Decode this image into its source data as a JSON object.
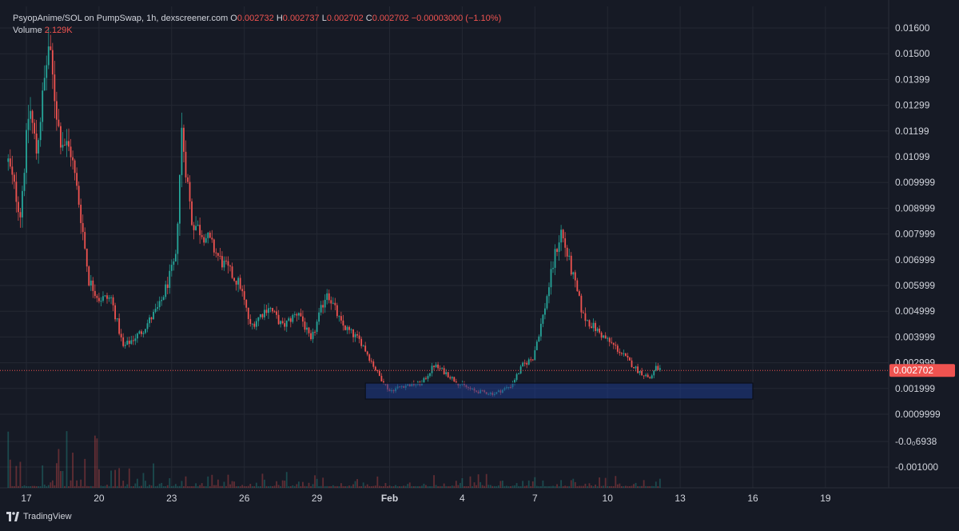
{
  "header": {
    "symbol": "PsyopAnime/SOL on PumpSwap, 1h, dexscreener.com",
    "o_label": "O",
    "o_value": "0.002732",
    "h_label": "H",
    "h_value": "0.002737",
    "l_label": "L",
    "l_value": "0.002702",
    "c_label": "C",
    "c_value": "0.002702",
    "change": "−0.00003000 (−1.10%)",
    "volume_label": "Volume",
    "volume_value": "2.129K"
  },
  "brand": "TradingView",
  "colors": {
    "background": "#161a25",
    "up": "#26a69a",
    "down": "#ef5350",
    "grid": "#242833",
    "text": "#d1d4dc",
    "zone": "#1e3a8a"
  },
  "chart_data": {
    "type": "candlestick",
    "interval": "1h",
    "x_ticks": [
      "17",
      "20",
      "23",
      "26",
      "29",
      "Feb",
      "4",
      "7",
      "10",
      "13",
      "16",
      "19"
    ],
    "y_ticks": [
      "0.01600",
      "0.01500",
      "0.01399",
      "0.01299",
      "0.01199",
      "0.01099",
      "0.009999",
      "0.008999",
      "0.007999",
      "0.006999",
      "0.005999",
      "0.004999",
      "0.003999",
      "0.002999",
      "0.001999",
      "0.0009999",
      "-0.0₀6938",
      "-0.001000"
    ],
    "y_range": [
      -0.0011,
      0.0166
    ],
    "current_price": 0.002702,
    "current_price_label": "0.002702",
    "zone": {
      "x_start": "Jan 31",
      "x_end": "Feb 16",
      "y_low": 0.00159,
      "y_high": 0.00221
    },
    "close_path": [
      {
        "x": "Jan 16 06:00",
        "y": 0.0108
      },
      {
        "x": "Jan 16 18:00",
        "y": 0.0088
      },
      {
        "x": "Jan 17 03:00",
        "y": 0.013
      },
      {
        "x": "Jan 17 10:00",
        "y": 0.0112
      },
      {
        "x": "Jan 17 22:00",
        "y": 0.0153
      },
      {
        "x": "Jan 18 09:00",
        "y": 0.0118
      },
      {
        "x": "Jan 18 20:00",
        "y": 0.0112
      },
      {
        "x": "Jan 19 05:00",
        "y": 0.009
      },
      {
        "x": "Jan 19 14:00",
        "y": 0.0062
      },
      {
        "x": "Jan 20 00:00",
        "y": 0.0055
      },
      {
        "x": "Jan 20 12:00",
        "y": 0.0055
      },
      {
        "x": "Jan 21 00:00",
        "y": 0.0036
      },
      {
        "x": "Jan 21 18:00",
        "y": 0.0042
      },
      {
        "x": "Jan 22 12:00",
        "y": 0.0052
      },
      {
        "x": "Jan 23 04:00",
        "y": 0.007
      },
      {
        "x": "Jan 23 10:00",
        "y": 0.012
      },
      {
        "x": "Jan 23 20:00",
        "y": 0.0085
      },
      {
        "x": "Jan 24 12:00",
        "y": 0.0078
      },
      {
        "x": "Jan 25 00:00",
        "y": 0.007
      },
      {
        "x": "Jan 25 20:00",
        "y": 0.006
      },
      {
        "x": "Jan 26 06:00",
        "y": 0.0044
      },
      {
        "x": "Jan 27 00:00",
        "y": 0.0052
      },
      {
        "x": "Jan 27 14:00",
        "y": 0.0044
      },
      {
        "x": "Jan 28 06:00",
        "y": 0.005
      },
      {
        "x": "Jan 28 18:00",
        "y": 0.0038
      },
      {
        "x": "Jan 29 10:00",
        "y": 0.0058
      },
      {
        "x": "Jan 30 00:00",
        "y": 0.0045
      },
      {
        "x": "Jan 30 20:00",
        "y": 0.0038
      },
      {
        "x": "Jan 31 12:00",
        "y": 0.0026
      },
      {
        "x": "Feb 1 00:00",
        "y": 0.0019
      },
      {
        "x": "Feb 1 12:00",
        "y": 0.0021
      },
      {
        "x": "Feb 2 08:00",
        "y": 0.0022
      },
      {
        "x": "Feb 2 20:00",
        "y": 0.0029
      },
      {
        "x": "Feb 3 08:00",
        "y": 0.0026
      },
      {
        "x": "Feb 3 20:00",
        "y": 0.0022
      },
      {
        "x": "Feb 4 12:00",
        "y": 0.0019
      },
      {
        "x": "Feb 5 08:00",
        "y": 0.0018
      },
      {
        "x": "Feb 6 00:00",
        "y": 0.0021
      },
      {
        "x": "Feb 6 12:00",
        "y": 0.0029
      },
      {
        "x": "Feb 6 22:00",
        "y": 0.0032
      },
      {
        "x": "Feb 7 08:00",
        "y": 0.0048
      },
      {
        "x": "Feb 7 20:00",
        "y": 0.0072
      },
      {
        "x": "Feb 8 02:00",
        "y": 0.0081
      },
      {
        "x": "Feb 8 12:00",
        "y": 0.0066
      },
      {
        "x": "Feb 9 00:00",
        "y": 0.0048
      },
      {
        "x": "Feb 9 20:00",
        "y": 0.004
      },
      {
        "x": "Feb 10 08:00",
        "y": 0.0036
      },
      {
        "x": "Feb 10 20:00",
        "y": 0.0031
      },
      {
        "x": "Feb 11 06:00",
        "y": 0.0027
      },
      {
        "x": "Feb 11 18:00",
        "y": 0.0024
      },
      {
        "x": "Feb 12 00:00",
        "y": 0.0028
      },
      {
        "x": "Feb 12 06:00",
        "y": 0.0027
      }
    ]
  }
}
